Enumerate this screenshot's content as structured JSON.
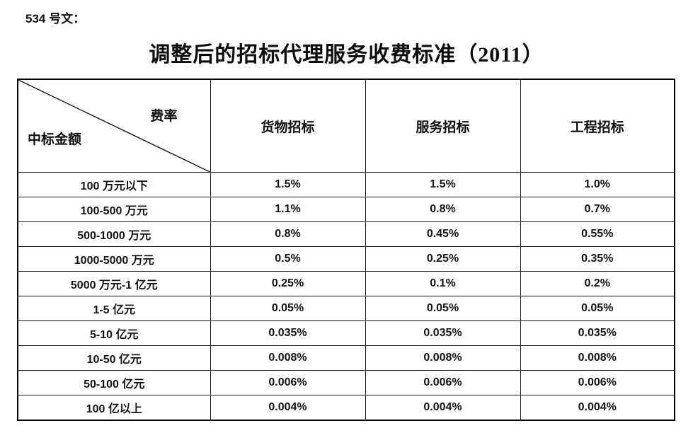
{
  "doc_number": "534 号文：",
  "title": "调整后的招标代理服务收费标准（2011）",
  "table": {
    "corner_top_right": "费率",
    "corner_bottom_left": "中标金额",
    "columns": [
      "货物招标",
      "服务招标",
      "工程招标"
    ],
    "rows": [
      {
        "label": "100 万元以下",
        "values": [
          "1.5%",
          "1.5%",
          "1.0%"
        ]
      },
      {
        "label": "100-500 万元",
        "values": [
          "1.1%",
          "0.8%",
          "0.7%"
        ]
      },
      {
        "label": "500-1000 万元",
        "values": [
          "0.8%",
          "0.45%",
          "0.55%"
        ]
      },
      {
        "label": "1000-5000 万元",
        "values": [
          "0.5%",
          "0.25%",
          "0.35%"
        ]
      },
      {
        "label": "5000 万元-1 亿元",
        "values": [
          "0.25%",
          "0.1%",
          "0.2%"
        ]
      },
      {
        "label": "1-5 亿元",
        "values": [
          "0.05%",
          "0.05%",
          "0.05%"
        ]
      },
      {
        "label": "5-10 亿元",
        "values": [
          "0.035%",
          "0.035%",
          "0.035%"
        ]
      },
      {
        "label": "10-50 亿元",
        "values": [
          "0.008%",
          "0.008%",
          "0.008%"
        ]
      },
      {
        "label": "50-100 亿元",
        "values": [
          "0.006%",
          "0.006%",
          "0.006%"
        ]
      },
      {
        "label": "100 亿以上",
        "values": [
          "0.004%",
          "0.004%",
          "0.004%"
        ]
      }
    ]
  },
  "colors": {
    "text": "#141414",
    "border": "#1a1a1a",
    "background": "#ffffff"
  }
}
